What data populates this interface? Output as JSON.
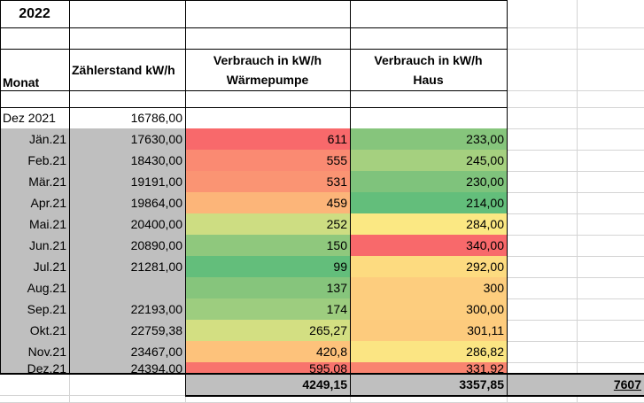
{
  "year_title": "2022",
  "headers": {
    "monat": "Monat",
    "zaehlerstand": "Zählerstand kW/h",
    "wp_line1": "Verbrauch in kW/h",
    "wp_line2": "Wärmepumpe",
    "haus_line1": "Verbrauch in kW/h",
    "haus_line2": "Haus"
  },
  "start_row": {
    "month": "Dez 2021",
    "reading": "16786,00"
  },
  "rows": [
    {
      "month": "Jän.21",
      "reading": "17630,00",
      "wp": "611",
      "haus": "233,00",
      "wp_color": "#f8696b",
      "haus_color": "#86c57c"
    },
    {
      "month": "Feb.21",
      "reading": "18430,00",
      "wp": "555",
      "haus": "245,00",
      "wp_color": "#fa8a72",
      "haus_color": "#a5d07f"
    },
    {
      "month": "Mär.21",
      "reading": "19191,00",
      "wp": "531",
      "haus": "230,00",
      "wp_color": "#fa9473",
      "haus_color": "#7fc37c"
    },
    {
      "month": "Apr.21",
      "reading": "19864,00",
      "wp": "459",
      "haus": "214,00",
      "wp_color": "#fcb579",
      "haus_color": "#63be7b"
    },
    {
      "month": "Mai.21",
      "reading": "20400,00",
      "wp": "252",
      "haus": "284,00",
      "wp_color": "#cddd82",
      "haus_color": "#fbe883"
    },
    {
      "month": "Jun.21",
      "reading": "20890,00",
      "wp": "150",
      "haus": "340,00",
      "wp_color": "#8fc87d",
      "haus_color": "#f8696b"
    },
    {
      "month": "Jul.21",
      "reading": "21281,00",
      "wp": "99",
      "haus": "292,00",
      "wp_color": "#63be7b",
      "haus_color": "#fddb80"
    },
    {
      "month": "Aug.21",
      "reading": "",
      "wp": "137",
      "haus": "300",
      "wp_color": "#86c57c",
      "haus_color": "#fdcd7e"
    },
    {
      "month": "Sep.21",
      "reading": "22193,00",
      "wp": "174",
      "haus": "300,00",
      "wp_color": "#9dcd7f",
      "haus_color": "#fdcd7e"
    },
    {
      "month": "Okt.21",
      "reading": "22759,38",
      "wp": "265,27",
      "haus": "301,11",
      "wp_color": "#d3df82",
      "haus_color": "#fdcb7d"
    },
    {
      "month": "Nov.21",
      "reading": "23467,00",
      "wp": "420,8",
      "haus": "286,82",
      "wp_color": "#fdc27b",
      "haus_color": "#fbe583"
    },
    {
      "month": "Dez.21",
      "reading": "24394,00",
      "wp": "595,08",
      "haus": "331,92",
      "wp_color": "#f8736d",
      "haus_color": "#f98470"
    }
  ],
  "totals": {
    "wp": "4249,15",
    "haus": "3357,85",
    "grand": "7607"
  },
  "colors": {
    "month_bg": "#bfbfbf",
    "total_bg": "#bfbfbf",
    "gridline": "#d4d4d4"
  }
}
